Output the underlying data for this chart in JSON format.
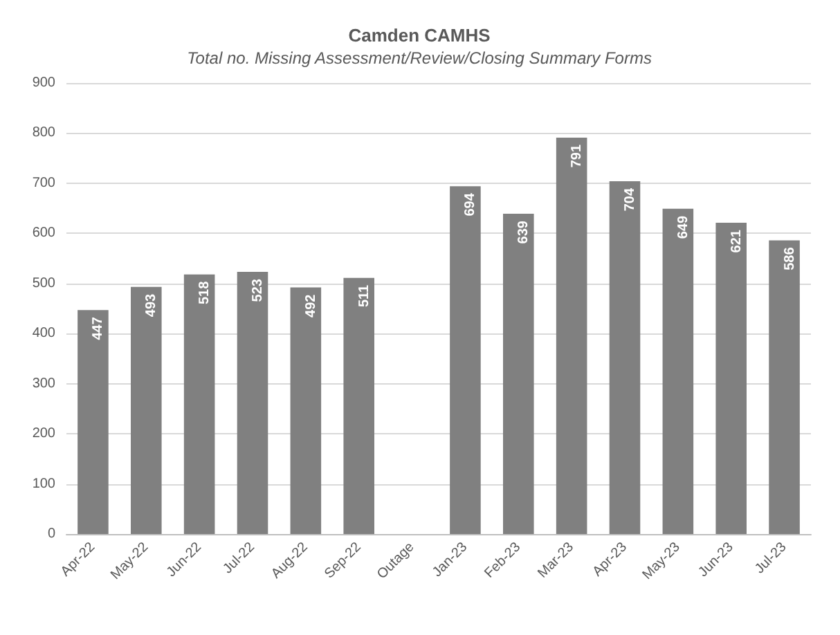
{
  "chart_data": {
    "type": "bar",
    "title": "Camden CAMHS",
    "subtitle": "Total no. Missing Assessment/Review/Closing Summary Forms",
    "categories": [
      "Apr-22",
      "May-22",
      "Jun-22",
      "Jul-22",
      "Aug-22",
      "Sep-22",
      "Outage",
      "Jan-23",
      "Feb-23",
      "Mar-23",
      "Apr-23",
      "May-23",
      "Jun-23",
      "Jul-23"
    ],
    "values": [
      447,
      493,
      518,
      523,
      492,
      511,
      null,
      694,
      639,
      791,
      704,
      649,
      621,
      586
    ],
    "color": "#808080",
    "ylim": [
      0,
      900
    ],
    "yticks": [
      0,
      100,
      200,
      300,
      400,
      500,
      600,
      700,
      800,
      900
    ],
    "grid": "y",
    "data_labels": true
  }
}
